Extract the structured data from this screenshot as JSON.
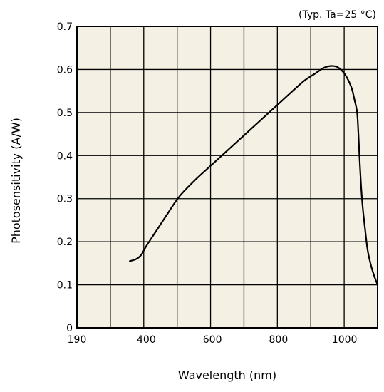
{
  "chart_data": {
    "type": "line",
    "annotation": "(Typ. Ta=25 °C)",
    "xlabel": "Wavelength (nm)",
    "ylabel": "Photosensitivity (A/W)",
    "xlim": [
      190,
      1100
    ],
    "ylim": [
      0,
      0.7
    ],
    "x_ticks": [
      190,
      400,
      600,
      800,
      1000
    ],
    "y_ticks": [
      0,
      0.1,
      0.2,
      0.3,
      0.4,
      0.5,
      0.6,
      0.7
    ],
    "grid": true,
    "colors": {
      "plot_background": "#f4f1e4",
      "grid": "#000000",
      "line": "#000000"
    },
    "series": [
      {
        "x": [
          350,
          370,
          385,
          400,
          430,
          460,
          500,
          550,
          600,
          650,
          700,
          750,
          800,
          850,
          880,
          910,
          935,
          950,
          965,
          980,
          1000,
          1020,
          1030,
          1038,
          1042,
          1045,
          1050,
          1055,
          1062,
          1070,
          1080,
          1090,
          1100
        ],
        "y": [
          0.155,
          0.16,
          0.17,
          0.19,
          0.225,
          0.26,
          0.305,
          0.345,
          0.38,
          0.415,
          0.45,
          0.485,
          0.52,
          0.555,
          0.575,
          0.59,
          0.603,
          0.607,
          0.608,
          0.605,
          0.59,
          0.56,
          0.53,
          0.5,
          0.45,
          0.4,
          0.33,
          0.28,
          0.23,
          0.18,
          0.145,
          0.12,
          0.1
        ]
      }
    ]
  }
}
